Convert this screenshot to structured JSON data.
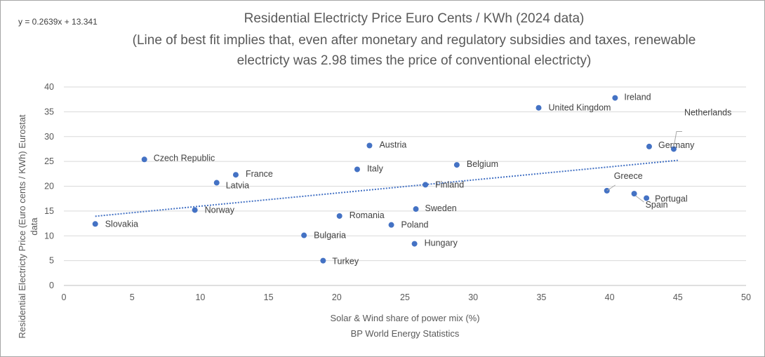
{
  "chart_data": {
    "type": "scatter",
    "title": "Residential Electricty Price Euro Cents / KWh (2024 data)",
    "subtitle_line1": "(Line of best fit implies that, even after monetary and regulatory subsidies and taxes, renewable",
    "subtitle_line2": "electricty was 2.98 times the price of conventional electricty)",
    "equation": "y = 0.2639x + 13.341",
    "xlabel": "Solar & Wind share of power mix (%)",
    "xlabel2": "BP World Energy Statistics",
    "ylabel": "Residential Electricty Price (Euro cents / KWh) Eurostat",
    "ylabel2": "data",
    "xlim": [
      0,
      50
    ],
    "ylim": [
      0,
      40
    ],
    "xticks": [
      0,
      5,
      10,
      15,
      20,
      25,
      30,
      35,
      40,
      45,
      50
    ],
    "yticks": [
      0,
      5,
      10,
      15,
      20,
      25,
      30,
      35,
      40
    ],
    "gridlines": "horizontal",
    "marker_color": "#4472c4",
    "trendline": {
      "slope": 0.2639,
      "intercept": 13.341,
      "x_start": 2.3,
      "x_end": 45,
      "style": "dotted",
      "color": "#4472c4"
    },
    "points": [
      {
        "name": "Slovakia",
        "x": 2.3,
        "y": 12.4
      },
      {
        "name": "Czech Republic",
        "x": 5.9,
        "y": 25.4
      },
      {
        "name": "Norway",
        "x": 9.6,
        "y": 15.2
      },
      {
        "name": "Latvia",
        "x": 11.2,
        "y": 20.7
      },
      {
        "name": "France",
        "x": 12.6,
        "y": 22.3
      },
      {
        "name": "Bulgaria",
        "x": 17.6,
        "y": 10.1
      },
      {
        "name": "Turkey",
        "x": 19.0,
        "y": 5.0
      },
      {
        "name": "Romania",
        "x": 20.2,
        "y": 14.0
      },
      {
        "name": "Italy",
        "x": 21.5,
        "y": 23.4
      },
      {
        "name": "Austria",
        "x": 22.4,
        "y": 28.2
      },
      {
        "name": "Poland",
        "x": 24.0,
        "y": 12.2
      },
      {
        "name": "Hungary",
        "x": 25.7,
        "y": 8.4
      },
      {
        "name": "Sweden",
        "x": 25.8,
        "y": 15.4
      },
      {
        "name": "Finland",
        "x": 26.5,
        "y": 20.3
      },
      {
        "name": "Belgium",
        "x": 28.8,
        "y": 24.3
      },
      {
        "name": "United Kingdom",
        "x": 34.8,
        "y": 35.8
      },
      {
        "name": "Greece",
        "x": 39.8,
        "y": 19.1
      },
      {
        "name": "Ireland",
        "x": 40.4,
        "y": 37.8
      },
      {
        "name": "Spain",
        "x": 41.8,
        "y": 18.5
      },
      {
        "name": "Portugal",
        "x": 42.7,
        "y": 17.6
      },
      {
        "name": "Germany",
        "x": 42.9,
        "y": 28.0
      },
      {
        "name": "Netherlands",
        "x": 44.7,
        "y": 27.5
      }
    ]
  }
}
